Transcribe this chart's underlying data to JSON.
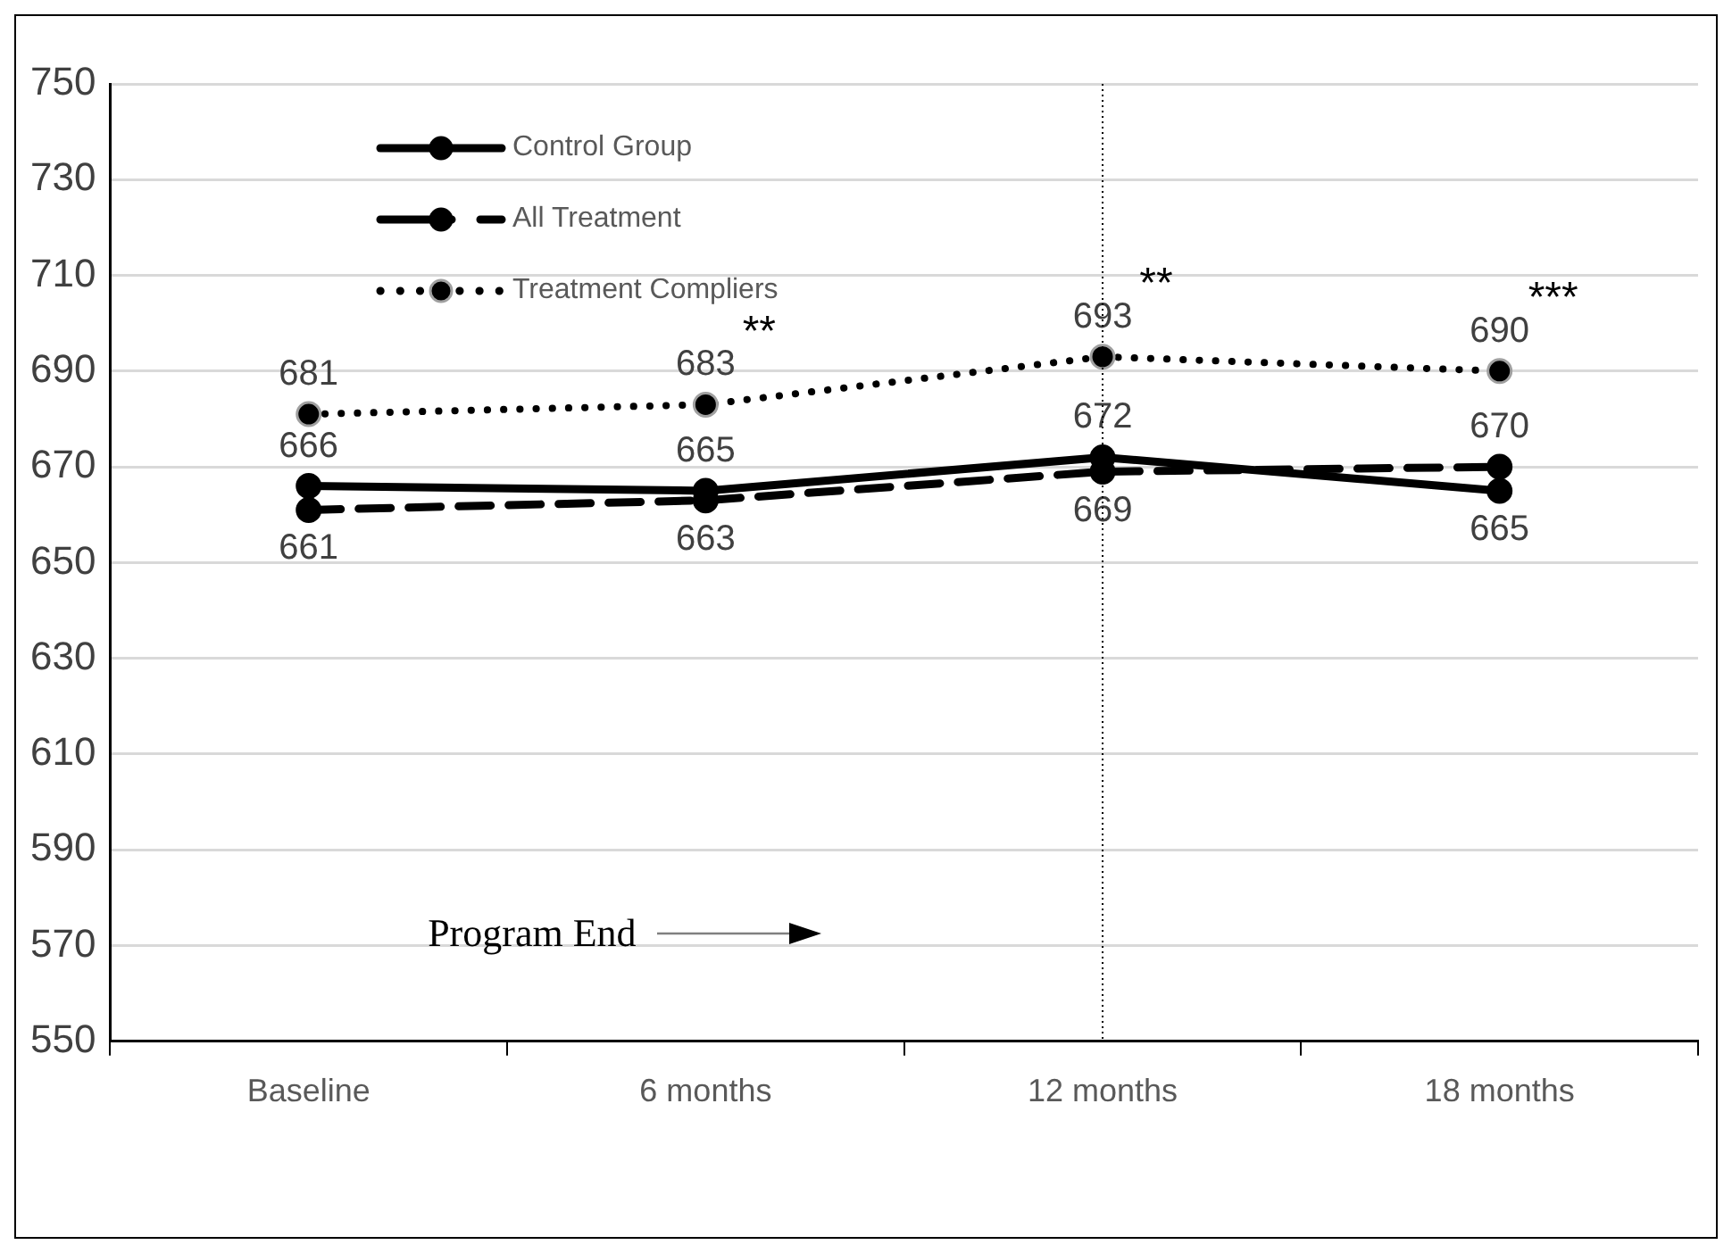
{
  "chart_data": {
    "type": "line",
    "categories": [
      "Baseline",
      "6 months",
      "12 months",
      "18 months"
    ],
    "series": [
      {
        "name": "Control Group",
        "color": "#000000",
        "values": [
          666,
          665,
          672,
          665
        ],
        "line_style": "solid"
      },
      {
        "name": "All Treatment",
        "color": "#000000",
        "values": [
          661,
          663,
          669,
          670
        ],
        "line_style": "dashed"
      },
      {
        "name": "Treatment Compliers",
        "color": "#000000",
        "values": [
          681,
          683,
          693,
          690
        ],
        "line_style": "dotted"
      }
    ],
    "ylim": [
      550,
      750
    ],
    "yticks": [
      550,
      570,
      590,
      610,
      630,
      650,
      670,
      690,
      710,
      730,
      750
    ],
    "grid": "y",
    "legend": "top left",
    "marker": "circle",
    "data_labels": true,
    "ref_lines": [
      {
        "axis": "x",
        "value": "12 months",
        "color": "#000000",
        "line_style": "dotted"
      }
    ],
    "annotations": [
      "Program End",
      {
        "text": "**",
        "x": "6 months",
        "y": 683
      },
      {
        "text": "**",
        "x": "12 months",
        "y": 693
      },
      {
        "text": "***",
        "x": "18 months",
        "y": 690
      }
    ]
  }
}
